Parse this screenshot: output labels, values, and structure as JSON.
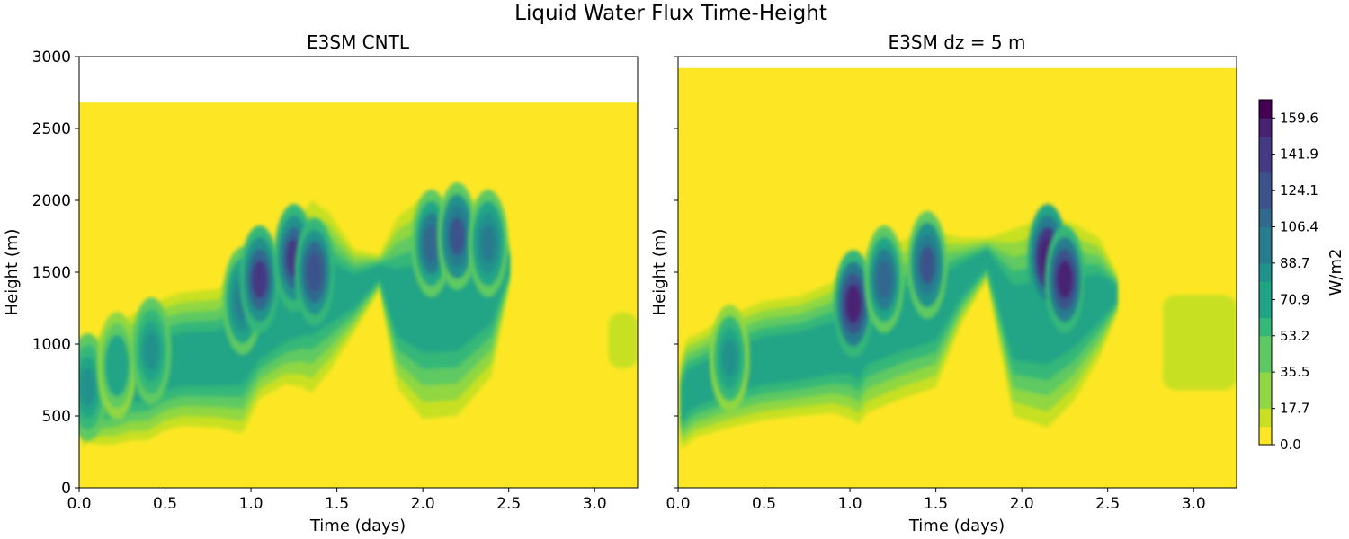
{
  "suptitle": "Liquid Water Flux Time-Height",
  "chart_data": [
    {
      "type": "heatmap",
      "title": "E3SM CNTL",
      "xlabel": "Time (days)",
      "ylabel": "Height (m)",
      "xlim": [
        0.0,
        3.25
      ],
      "ylim": [
        0,
        3000
      ],
      "xticks": [
        0.0,
        0.5,
        1.0,
        1.5,
        2.0,
        2.5,
        3.0
      ],
      "xtick_labels": [
        "0.0",
        "0.5",
        "1.0",
        "1.5",
        "2.0",
        "2.5",
        "3.0"
      ],
      "yticks": [
        0,
        500,
        1000,
        1500,
        2000,
        2500,
        3000
      ],
      "ytick_labels": [
        "0",
        "500",
        "1000",
        "1500",
        "2000",
        "2500",
        "3000"
      ],
      "data_top_height": 2680,
      "cloud_envelope": {
        "time": [
          0.02,
          0.05,
          0.1,
          0.2,
          0.3,
          0.4,
          0.5,
          0.6,
          0.8,
          0.95,
          1.05,
          1.2,
          1.3,
          1.35,
          1.45,
          1.6,
          1.75,
          1.85,
          2.0,
          2.2,
          2.4,
          2.5
        ],
        "top": [
          800,
          1040,
          1040,
          1120,
          1200,
          1250,
          1320,
          1360,
          1380,
          1500,
          1520,
          1700,
          1900,
          2000,
          1920,
          1660,
          1620,
          1880,
          2020,
          2000,
          2000,
          1700
        ],
        "bottom": [
          280,
          320,
          300,
          300,
          330,
          330,
          400,
          430,
          420,
          380,
          620,
          720,
          700,
          660,
          800,
          1080,
          1380,
          700,
          480,
          500,
          780,
          1400
        ]
      },
      "cores": [
        {
          "time": 0.05,
          "height": 700,
          "value": 90
        },
        {
          "time": 0.22,
          "height": 850,
          "value": 75
        },
        {
          "time": 0.42,
          "height": 950,
          "value": 90
        },
        {
          "time": 0.95,
          "height": 1300,
          "value": 100
        },
        {
          "time": 1.05,
          "height": 1450,
          "value": 140
        },
        {
          "time": 1.25,
          "height": 1600,
          "value": 140
        },
        {
          "time": 1.37,
          "height": 1500,
          "value": 130
        },
        {
          "time": 2.05,
          "height": 1700,
          "value": 110
        },
        {
          "time": 2.2,
          "height": 1750,
          "value": 120
        },
        {
          "time": 2.38,
          "height": 1700,
          "value": 105
        }
      ],
      "faint_patch": {
        "time": [
          3.08,
          3.25
        ],
        "height": [
          830,
          1220
        ],
        "value": 15
      }
    },
    {
      "type": "heatmap",
      "title": "E3SM dz = 5 m",
      "xlabel": "Time (days)",
      "ylabel": "Height (m)",
      "xlim": [
        0.0,
        3.25
      ],
      "ylim": [
        0,
        3000
      ],
      "xticks": [
        0.0,
        0.5,
        1.0,
        1.5,
        2.0,
        2.5,
        3.0
      ],
      "xtick_labels": [
        "0.0",
        "0.5",
        "1.0",
        "1.5",
        "2.0",
        "2.5",
        "3.0"
      ],
      "yticks": [
        0,
        500,
        1000,
        1500,
        2000,
        2500,
        3000
      ],
      "ytick_labels": [
        "",
        "",
        "",
        "",
        "",
        "",
        ""
      ],
      "data_top_height": 2920,
      "cloud_envelope": {
        "time": [
          0.02,
          0.05,
          0.1,
          0.3,
          0.5,
          0.7,
          0.9,
          1.0,
          1.05,
          1.1,
          1.3,
          1.5,
          1.65,
          1.8,
          1.95,
          2.15,
          2.3,
          2.45,
          2.55
        ],
        "top": [
          900,
          1040,
          1060,
          1200,
          1300,
          1330,
          1430,
          1520,
          1480,
          1640,
          1720,
          1780,
          1740,
          1740,
          1800,
          1880,
          1840,
          1740,
          1500
        ],
        "bottom": [
          260,
          300,
          350,
          420,
          470,
          500,
          520,
          480,
          440,
          520,
          620,
          700,
          1150,
          1450,
          500,
          420,
          600,
          900,
          1200
        ]
      },
      "cores": [
        {
          "time": 0.3,
          "height": 900,
          "value": 85
        },
        {
          "time": 1.02,
          "height": 1280,
          "value": 150
        },
        {
          "time": 1.2,
          "height": 1450,
          "value": 110
        },
        {
          "time": 1.45,
          "height": 1550,
          "value": 120
        },
        {
          "time": 2.15,
          "height": 1600,
          "value": 160
        },
        {
          "time": 2.25,
          "height": 1450,
          "value": 150
        }
      ],
      "faint_patch": {
        "time": [
          2.82,
          3.25
        ],
        "height": [
          680,
          1340
        ],
        "value": 15
      }
    }
  ],
  "colorbar": {
    "label": "W/m2",
    "min": 0.0,
    "max": 168.5,
    "tick_values": [
      0.0,
      17.7,
      35.5,
      53.2,
      70.9,
      88.7,
      106.4,
      124.1,
      141.9,
      159.6
    ],
    "tick_labels": [
      "0.0",
      "17.7",
      "35.5",
      "53.2",
      "70.9",
      "88.7",
      "106.4",
      "124.1",
      "141.9",
      "159.6"
    ],
    "levels": 19,
    "colors": [
      "#fde725",
      "#c8e020",
      "#90d743",
      "#5ec962",
      "#35b779",
      "#20a486",
      "#21918c",
      "#287c8e",
      "#31688e",
      "#3b528b",
      "#443983",
      "#482173",
      "#440154"
    ]
  }
}
